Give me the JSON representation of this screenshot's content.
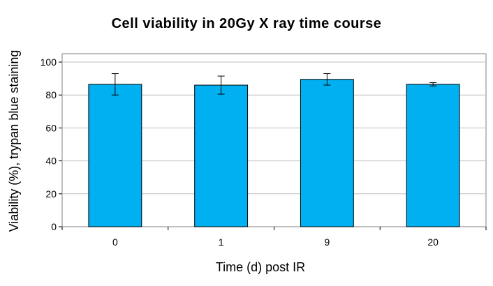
{
  "chart_data": {
    "type": "bar",
    "title": "Cell viability in 20Gy X ray time course",
    "xlabel": "Time (d) post IR",
    "ylabel": "Viability (%), trypan blue staining",
    "categories": [
      "0",
      "1",
      "9",
      "20"
    ],
    "series": [
      {
        "values": [
          86.5,
          86.0,
          89.5,
          86.5
        ],
        "error": [
          6.5,
          5.5,
          3.5,
          1.0
        ]
      }
    ],
    "ylim": [
      0,
      100
    ],
    "yticks": [
      "0",
      "20",
      "40",
      "60",
      "80",
      "100"
    ],
    "grid": true,
    "legend": "none",
    "colors": {
      "bar": "#00B0F0",
      "bar_stroke": "#000000",
      "plot_background": "#ffffff",
      "plot_border": "#808080",
      "gridline": "#c0c0c0"
    }
  }
}
